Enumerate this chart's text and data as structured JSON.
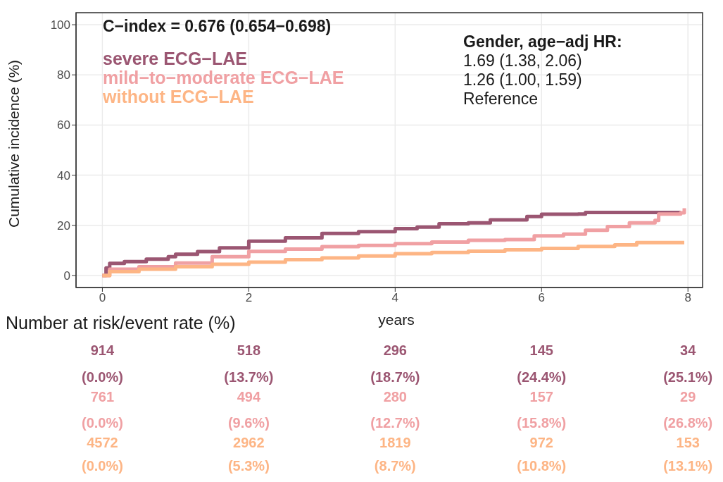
{
  "chart_data": {
    "type": "step",
    "xlabel": "years",
    "ylabel": "Cumulative incidence (%)",
    "xlim": [
      -0.36,
      8.2
    ],
    "ylim": [
      -4.8,
      104.8
    ],
    "xticks": [
      0,
      2,
      4,
      6,
      8
    ],
    "yticks": [
      0,
      20,
      40,
      60,
      80,
      100
    ],
    "grid": true,
    "legend": "top left",
    "line_style": "solid",
    "marker": "none",
    "series": [
      {
        "name": "severe ECG−LAE",
        "color": "#9b5672",
        "x": [
          0,
          0.05,
          0.1,
          0.3,
          0.6,
          0.9,
          1.0,
          1.3,
          1.6,
          2,
          2.5,
          3,
          3.5,
          4,
          4.3,
          4.6,
          5,
          5.3,
          5.8,
          6,
          6.5,
          6.6,
          7.9
        ],
        "values": [
          0,
          3,
          4.8,
          5.5,
          6.5,
          7.5,
          8.5,
          9.5,
          11,
          13.7,
          15,
          16.8,
          17.5,
          18.7,
          19.3,
          20.6,
          21,
          22.2,
          23.5,
          24.4,
          24.5,
          25.1,
          25.1
        ]
      },
      {
        "name": "mild−to−moderate ECG−LAE",
        "color": "#f0a0a3",
        "x": [
          0,
          0.1,
          0.5,
          1,
          1.5,
          2,
          2.5,
          3,
          3.5,
          4,
          4.5,
          5,
          5.5,
          5.9,
          6.3,
          6.6,
          6.9,
          7.2,
          7.55,
          7.6,
          7.9,
          7.95
        ],
        "values": [
          0,
          2.5,
          3.5,
          5,
          7.5,
          9.6,
          10.5,
          11.5,
          12,
          12.7,
          13.3,
          14,
          14.3,
          15.8,
          16.5,
          18,
          19.5,
          21,
          22,
          24.5,
          25,
          26.8
        ]
      },
      {
        "name": "without ECG−LAE",
        "color": "#fdb585",
        "x": [
          0,
          0.1,
          0.5,
          1,
          1.5,
          2,
          2.5,
          3,
          3.5,
          4,
          4.5,
          5,
          5.5,
          6,
          6.5,
          7,
          7.3,
          7.95
        ],
        "values": [
          0,
          1.5,
          2.5,
          3.5,
          4.5,
          5.3,
          6.3,
          7,
          7.8,
          8.7,
          9.2,
          9.7,
          10.2,
          10.8,
          11.6,
          12.2,
          13.1,
          13.1
        ]
      }
    ],
    "annotations": [
      "C−index = 0.676 (0.654−0.698)",
      "Gender, age−adj HR:",
      "1.69 (1.38, 2.06)",
      "1.26 (1.00, 1.59)",
      "Reference",
      "Number at risk/event rate (%)",
      "914",
      "518",
      "296",
      "145",
      "34",
      "(0.0%)",
      "(13.7%)",
      "(18.7%)",
      "(24.4%)",
      "(25.1%)",
      "761",
      "494",
      "280",
      "157",
      "29",
      "(0.0%)",
      "(9.6%)",
      "(12.7%)",
      "(15.8%)",
      "(26.8%)",
      "4572",
      "2962",
      "1819",
      "972",
      "153",
      "(0.0%)",
      "(5.3%)",
      "(8.7%)",
      "(10.8%)",
      "(13.1%)"
    ]
  }
}
